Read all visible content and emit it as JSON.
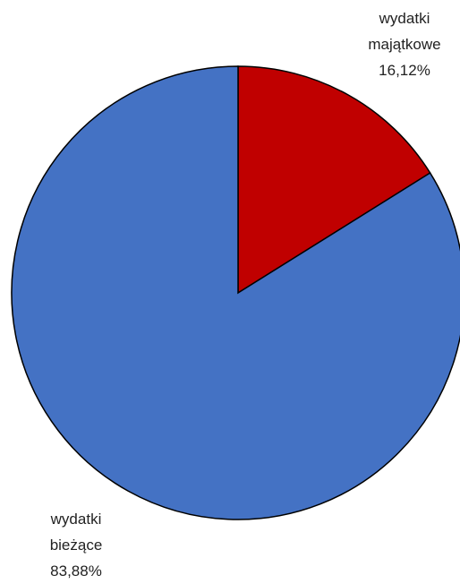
{
  "chart_data": {
    "type": "pie",
    "categories": [
      "wydatki majątkowe",
      "wydatki bieżące"
    ],
    "values": [
      16.12,
      83.88
    ],
    "value_labels": [
      "16,12%",
      "83,88%"
    ],
    "colors": [
      "#c00000",
      "#4472c4"
    ]
  }
}
